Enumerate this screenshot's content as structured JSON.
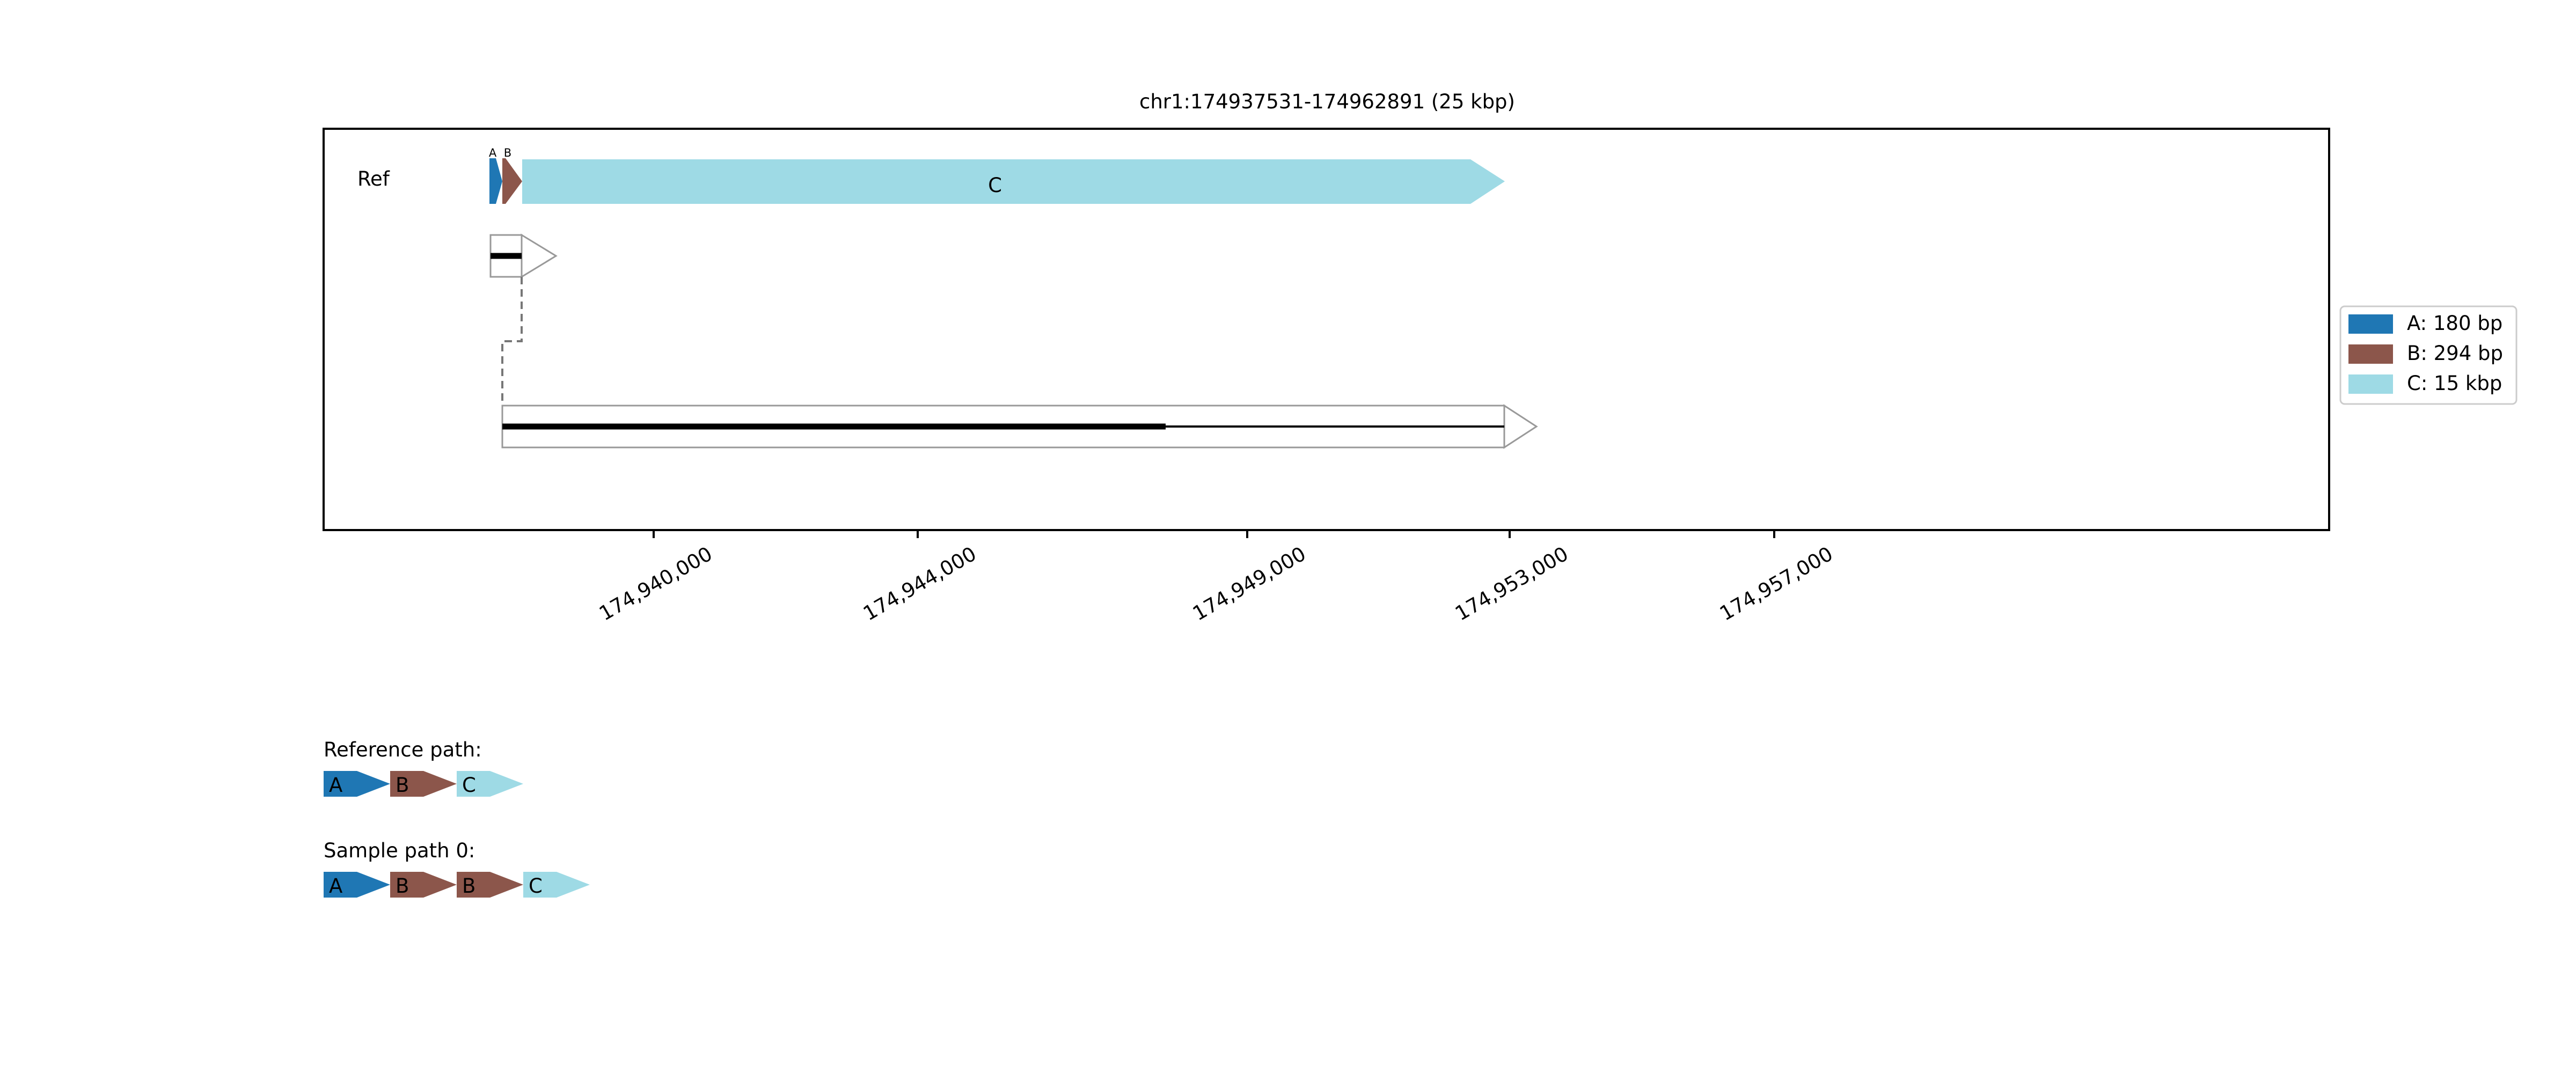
{
  "title": "chr1:174937531-174962891 (25 kbp)",
  "ref_label": "Ref",
  "segments": [
    {
      "id": "A",
      "color": "#1f77b4",
      "legend": "A: 180 bp"
    },
    {
      "id": "B",
      "color": "#8c564b",
      "legend": "B: 294 bp"
    },
    {
      "id": "C",
      "color": "#9edae5",
      "legend": "C: 15 kbp"
    }
  ],
  "ref_track": {
    "small_labels": [
      "A",
      "B"
    ],
    "c_label": "C"
  },
  "x_ticks": [
    "174,940,000",
    "174,944,000",
    "174,949,000",
    "174,953,000",
    "174,957,000"
  ],
  "paths": [
    {
      "title": "Reference path:",
      "items": [
        "A",
        "B",
        "C"
      ]
    },
    {
      "title": "Sample path 0:",
      "items": [
        "A",
        "B",
        "B",
        "C"
      ]
    }
  ]
}
